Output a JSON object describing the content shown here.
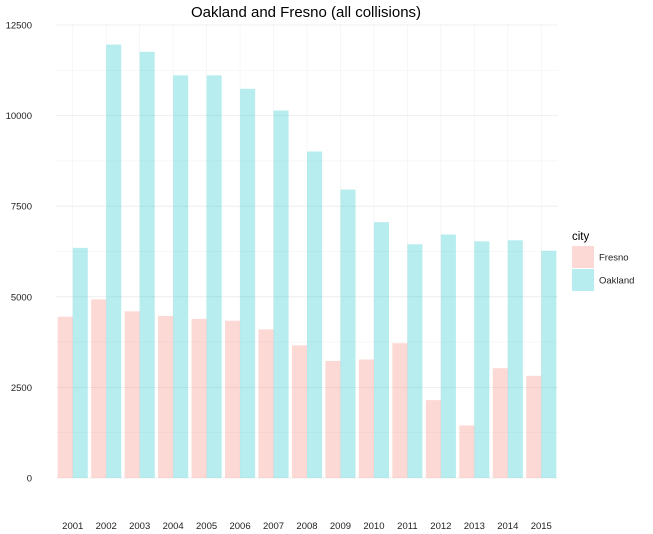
{
  "chart_data": {
    "type": "bar",
    "title": "Oakland and Fresno (all collisions)",
    "xlabel": "",
    "ylabel": "",
    "categories": [
      "2001",
      "2002",
      "2003",
      "2004",
      "2005",
      "2006",
      "2007",
      "2008",
      "2009",
      "2010",
      "2011",
      "2012",
      "2013",
      "2014",
      "2015"
    ],
    "series": [
      {
        "name": "Fresno",
        "color": "#f8766d",
        "values": [
          4450,
          4930,
          4600,
          4470,
          4390,
          4340,
          4100,
          3660,
          3230,
          3270,
          3720,
          2150,
          1450,
          3030,
          2820
        ]
      },
      {
        "name": "Oakland",
        "color": "#00bfc4",
        "values": [
          6350,
          11960,
          11760,
          11110,
          11110,
          10740,
          10140,
          9010,
          7960,
          7060,
          6450,
          6720,
          6530,
          6560,
          6270
        ]
      }
    ],
    "ylim": [
      0,
      12500
    ],
    "yticks": [
      0,
      2500,
      5000,
      7500,
      10000,
      12500
    ],
    "grid": true,
    "legend": {
      "title": "city",
      "position": "right"
    }
  }
}
